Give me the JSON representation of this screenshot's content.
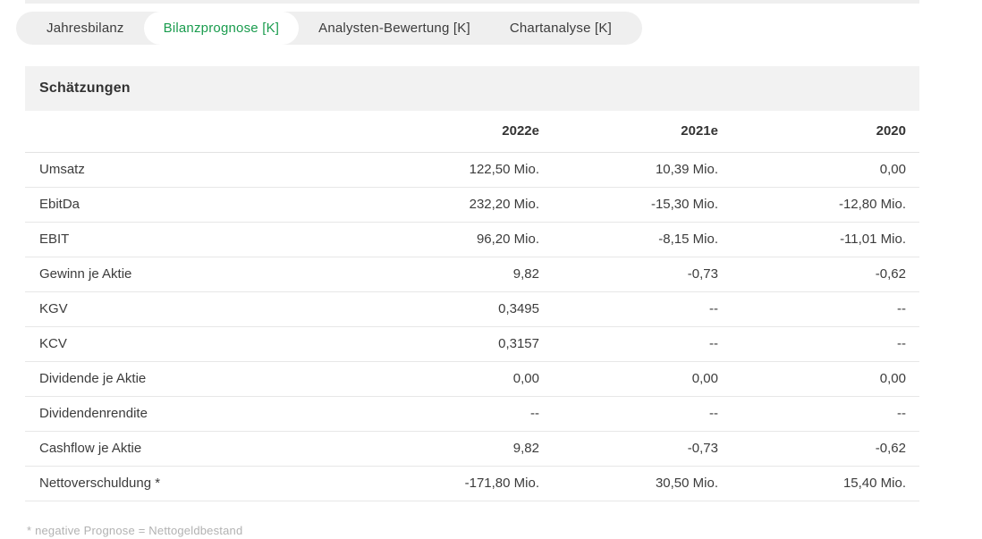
{
  "tabs": {
    "active_color": "#1a9c4e",
    "items": [
      {
        "label": "Jahresbilanz",
        "active": false
      },
      {
        "label": "Bilanzprognose [K]",
        "active": true
      },
      {
        "label": "Analysten-Bewertung [K]",
        "active": false
      },
      {
        "label": "Chartanalyse [K]",
        "active": false
      }
    ]
  },
  "section": {
    "title": "Schätzungen"
  },
  "table": {
    "columns": [
      "",
      "2022e",
      "2021e",
      "2020"
    ],
    "rows": [
      {
        "label": "Umsatz",
        "values": [
          "122,50 Mio.",
          "10,39 Mio.",
          "0,00"
        ]
      },
      {
        "label": "EbitDa",
        "values": [
          "232,20 Mio.",
          "-15,30 Mio.",
          "-12,80 Mio."
        ]
      },
      {
        "label": "EBIT",
        "values": [
          "96,20 Mio.",
          "-8,15 Mio.",
          "-11,01 Mio."
        ]
      },
      {
        "label": "Gewinn je Aktie",
        "values": [
          "9,82",
          "-0,73",
          "-0,62"
        ]
      },
      {
        "label": "KGV",
        "values": [
          "0,3495",
          "--",
          "--"
        ]
      },
      {
        "label": "KCV",
        "values": [
          "0,3157",
          "--",
          "--"
        ]
      },
      {
        "label": "Dividende je Aktie",
        "values": [
          "0,00",
          "0,00",
          "0,00"
        ]
      },
      {
        "label": "Dividendenrendite",
        "values": [
          "--",
          "--",
          "--"
        ]
      },
      {
        "label": "Cashflow je Aktie",
        "values": [
          "9,82",
          "-0,73",
          "-0,62"
        ]
      },
      {
        "label": "Nettoverschuldung *",
        "values": [
          "-171,80 Mio.",
          "30,50 Mio.",
          "15,40 Mio."
        ]
      }
    ]
  },
  "footnote": "* negative Prognose = Nettogeldbestand"
}
